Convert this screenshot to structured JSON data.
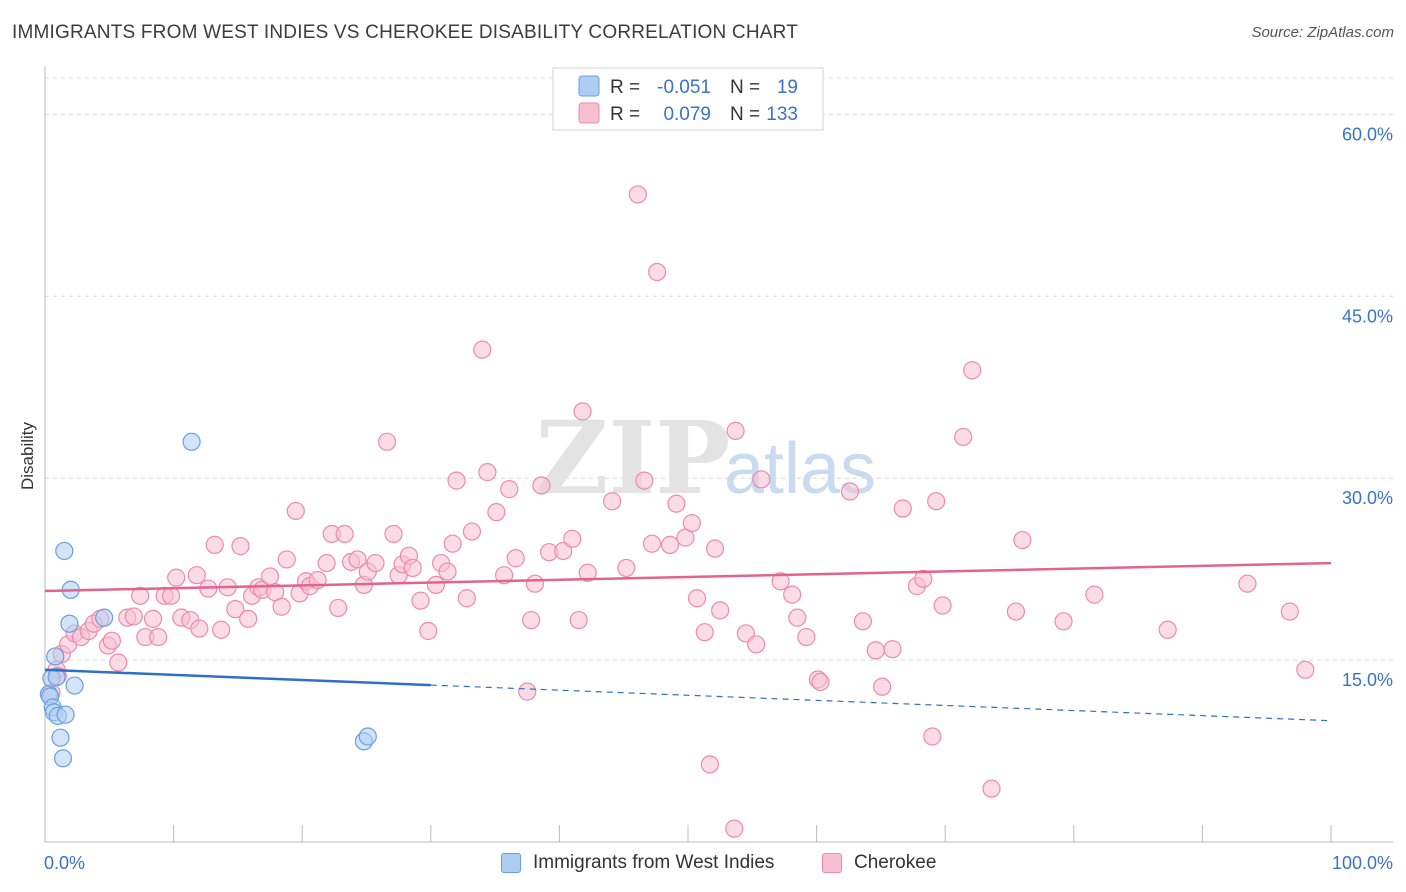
{
  "header": {
    "title": "IMMIGRANTS FROM WEST INDIES VS CHEROKEE DISABILITY CORRELATION CHART",
    "source": "Source: ZipAtlas.com"
  },
  "watermark": {
    "zip": "ZIP",
    "atlas": "atlas"
  },
  "legend_top": {
    "rows": [
      {
        "r_label": "R =",
        "r_value": "-0.051",
        "n_label": "N =",
        "n_value": "19"
      },
      {
        "r_label": "R =",
        "r_value": "0.079",
        "n_label": "N =",
        "n_value": "133"
      }
    ]
  },
  "legend_bottom": {
    "items": [
      "Immigrants from West Indies",
      "Cherokee"
    ]
  },
  "colors": {
    "blue_fill": "#aecdf2",
    "blue_stroke": "#6a9fe0",
    "blue_line": "#2e6fca",
    "pink_fill": "#f7c0d2",
    "pink_stroke": "#ee8aac",
    "pink_line": "#e2648e",
    "axis_text": "#3a72c9",
    "grid": "#d8d8d8"
  },
  "chart_data": {
    "type": "scatter",
    "title": "IMMIGRANTS FROM WEST INDIES VS CHEROKEE DISABILITY CORRELATION CHART",
    "xlabel": "",
    "ylabel": "Disability",
    "xlim": [
      0,
      100
    ],
    "ylim": [
      0,
      63
    ],
    "x_tick_labels": [
      "0.0%",
      "100.0%"
    ],
    "y_ticks": [
      15,
      30,
      45,
      60
    ],
    "y_tick_labels": [
      "15.0%",
      "30.0%",
      "45.0%",
      "60.0%"
    ],
    "grid": true,
    "legend_position": "top-center",
    "series": [
      {
        "name": "Immigrants from West Indies",
        "color": "#6a9fe0",
        "R": -0.051,
        "N": 19,
        "trend": {
          "x0": 0,
          "y0": 14.2,
          "x1": 100,
          "y1": 10.0,
          "solid_until_x": 30
        },
        "points": [
          [
            0.3,
            12.2
          ],
          [
            0.4,
            12.0
          ],
          [
            0.5,
            13.5
          ],
          [
            0.6,
            11.1
          ],
          [
            0.7,
            10.7
          ],
          [
            0.8,
            15.3
          ],
          [
            0.9,
            13.6
          ],
          [
            1.0,
            10.4
          ],
          [
            1.2,
            8.6
          ],
          [
            1.4,
            6.9
          ],
          [
            1.5,
            24.0
          ],
          [
            1.6,
            10.5
          ],
          [
            1.9,
            18.0
          ],
          [
            2.0,
            20.8
          ],
          [
            2.3,
            12.9
          ],
          [
            4.6,
            18.5
          ],
          [
            11.4,
            33.0
          ],
          [
            24.8,
            8.3
          ],
          [
            25.1,
            8.7
          ]
        ]
      },
      {
        "name": "Cherokee",
        "color": "#ee8aac",
        "R": 0.079,
        "N": 133,
        "trend": {
          "x0": 0,
          "y0": 20.7,
          "x1": 100,
          "y1": 23.0
        },
        "points": [
          [
            0.5,
            12.3
          ],
          [
            0.9,
            14.2
          ],
          [
            1.0,
            13.7
          ],
          [
            1.3,
            15.5
          ],
          [
            1.8,
            16.3
          ],
          [
            2.3,
            17.2
          ],
          [
            2.8,
            16.9
          ],
          [
            3.4,
            17.4
          ],
          [
            3.8,
            18.0
          ],
          [
            4.3,
            18.4
          ],
          [
            4.9,
            16.2
          ],
          [
            5.2,
            16.6
          ],
          [
            5.7,
            14.8
          ],
          [
            6.4,
            18.5
          ],
          [
            6.9,
            18.6
          ],
          [
            7.4,
            20.3
          ],
          [
            7.8,
            16.9
          ],
          [
            8.4,
            18.4
          ],
          [
            8.8,
            16.9
          ],
          [
            9.3,
            20.3
          ],
          [
            9.8,
            20.3
          ],
          [
            10.2,
            21.8
          ],
          [
            10.6,
            18.5
          ],
          [
            11.3,
            18.3
          ],
          [
            11.8,
            22.0
          ],
          [
            12.0,
            17.6
          ],
          [
            12.7,
            20.9
          ],
          [
            13.2,
            24.5
          ],
          [
            13.7,
            17.5
          ],
          [
            14.2,
            21.0
          ],
          [
            14.8,
            19.2
          ],
          [
            15.2,
            24.4
          ],
          [
            15.8,
            18.4
          ],
          [
            16.1,
            20.3
          ],
          [
            16.6,
            21.0
          ],
          [
            16.9,
            20.8
          ],
          [
            17.5,
            21.9
          ],
          [
            17.9,
            20.6
          ],
          [
            18.4,
            19.4
          ],
          [
            18.8,
            23.3
          ],
          [
            19.5,
            27.3
          ],
          [
            19.8,
            20.5
          ],
          [
            20.3,
            21.5
          ],
          [
            20.6,
            21.1
          ],
          [
            21.2,
            21.6
          ],
          [
            21.9,
            23.0
          ],
          [
            22.3,
            25.4
          ],
          [
            22.8,
            19.3
          ],
          [
            23.3,
            25.4
          ],
          [
            23.8,
            23.1
          ],
          [
            24.3,
            23.3
          ],
          [
            24.8,
            21.2
          ],
          [
            25.1,
            22.3
          ],
          [
            25.7,
            23.0
          ],
          [
            26.6,
            33.0
          ],
          [
            27.1,
            25.4
          ],
          [
            27.5,
            22.0
          ],
          [
            27.8,
            22.9
          ],
          [
            28.3,
            23.6
          ],
          [
            28.6,
            22.6
          ],
          [
            29.2,
            19.9
          ],
          [
            29.8,
            17.4
          ],
          [
            30.4,
            21.2
          ],
          [
            30.8,
            23.0
          ],
          [
            31.3,
            22.3
          ],
          [
            31.7,
            24.6
          ],
          [
            32.0,
            29.8
          ],
          [
            32.8,
            20.1
          ],
          [
            33.2,
            25.6
          ],
          [
            34.0,
            40.6
          ],
          [
            34.4,
            30.5
          ],
          [
            35.1,
            27.2
          ],
          [
            35.7,
            22.0
          ],
          [
            36.1,
            29.1
          ],
          [
            36.6,
            23.4
          ],
          [
            37.5,
            12.4
          ],
          [
            37.8,
            18.3
          ],
          [
            38.1,
            21.3
          ],
          [
            38.6,
            29.4
          ],
          [
            39.2,
            23.9
          ],
          [
            40.3,
            24.0
          ],
          [
            41.0,
            25.0
          ],
          [
            41.5,
            18.3
          ],
          [
            41.8,
            35.5
          ],
          [
            42.2,
            22.2
          ],
          [
            44.1,
            28.1
          ],
          [
            45.2,
            22.6
          ],
          [
            46.1,
            53.4
          ],
          [
            46.6,
            29.8
          ],
          [
            47.2,
            24.6
          ],
          [
            47.6,
            47.0
          ],
          [
            48.6,
            24.5
          ],
          [
            49.1,
            27.9
          ],
          [
            49.8,
            25.1
          ],
          [
            50.3,
            26.3
          ],
          [
            50.7,
            20.1
          ],
          [
            51.3,
            17.3
          ],
          [
            51.7,
            6.4
          ],
          [
            52.1,
            24.2
          ],
          [
            52.5,
            19.1
          ],
          [
            53.7,
            33.9
          ],
          [
            54.5,
            17.2
          ],
          [
            55.3,
            16.3
          ],
          [
            55.7,
            29.9
          ],
          [
            57.2,
            21.5
          ],
          [
            58.1,
            20.4
          ],
          [
            58.5,
            18.5
          ],
          [
            59.2,
            16.9
          ],
          [
            60.1,
            13.4
          ],
          [
            60.3,
            13.2
          ],
          [
            62.6,
            28.9
          ],
          [
            63.6,
            18.2
          ],
          [
            64.6,
            15.8
          ],
          [
            65.1,
            12.8
          ],
          [
            65.9,
            15.9
          ],
          [
            66.7,
            27.5
          ],
          [
            67.8,
            21.1
          ],
          [
            68.3,
            21.7
          ],
          [
            69.0,
            8.7
          ],
          [
            69.3,
            28.1
          ],
          [
            69.8,
            19.5
          ],
          [
            71.4,
            33.4
          ],
          [
            72.1,
            38.9
          ],
          [
            73.6,
            4.4
          ],
          [
            75.5,
            19.0
          ],
          [
            76.0,
            24.9
          ],
          [
            79.2,
            18.2
          ],
          [
            81.6,
            20.4
          ],
          [
            87.3,
            17.5
          ],
          [
            93.5,
            21.3
          ],
          [
            96.8,
            19.0
          ],
          [
            98.0,
            14.2
          ],
          [
            53.6,
            1.1
          ]
        ]
      }
    ]
  }
}
